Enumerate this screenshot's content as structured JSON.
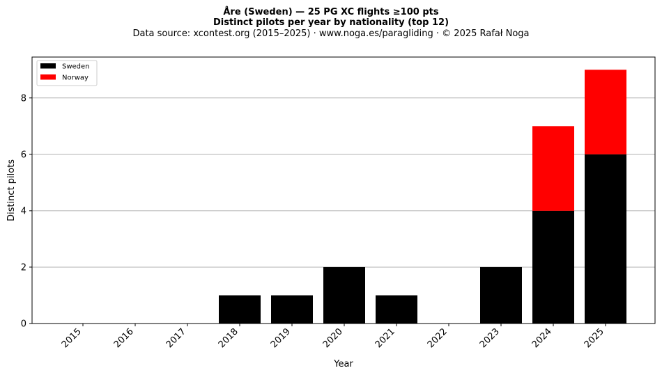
{
  "chart_data": {
    "type": "bar",
    "stacked": true,
    "title": "Åre (Sweden)  —  25 PG XC flights ≥100 pts",
    "subtitle": "Distinct pilots per year by nationality (top 12)",
    "source_note": "Data source: xcontest.org (2015–2025)  ·  www.noga.es/paragliding  ·  © 2025 Rafał Noga",
    "xlabel": "Year",
    "ylabel": "Distinct pilots",
    "categories": [
      "2015",
      "2016",
      "2017",
      "2018",
      "2019",
      "2020",
      "2021",
      "2022",
      "2023",
      "2024",
      "2025"
    ],
    "series": [
      {
        "name": "Sweden",
        "color": "#000000",
        "values": [
          0,
          0,
          0,
          1,
          1,
          2,
          1,
          0,
          2,
          4,
          6
        ]
      },
      {
        "name": "Norway",
        "color": "#ff0000",
        "values": [
          0,
          0,
          0,
          0,
          0,
          0,
          0,
          0,
          0,
          3,
          3
        ]
      }
    ],
    "ylim": [
      0,
      9.45
    ],
    "yticks": [
      0,
      2,
      4,
      6,
      8
    ],
    "grid": "y",
    "legend": "top-left"
  }
}
